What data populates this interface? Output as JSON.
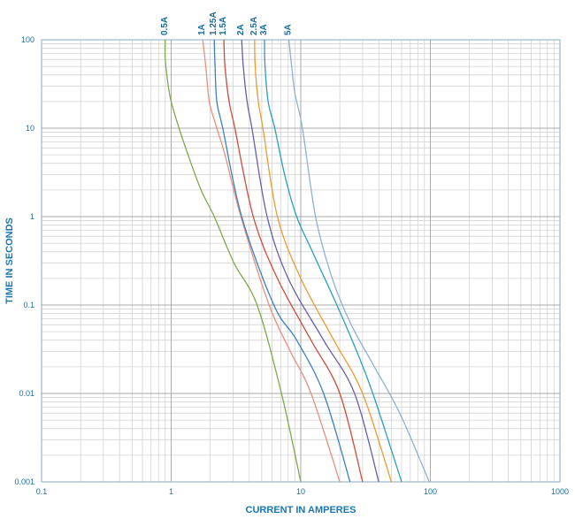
{
  "chart_data": {
    "type": "line",
    "xlabel": "CURRENT IN AMPERES",
    "ylabel": "TIME IN SECONDS",
    "xscale": "log",
    "yscale": "log",
    "xlim": [
      0.1,
      1000
    ],
    "ylim": [
      0.001,
      100
    ],
    "grid": true,
    "xticks": [
      {
        "value": 0.1,
        "label": "0.1"
      },
      {
        "value": 1,
        "label": "1"
      },
      {
        "value": 10,
        "label": "10"
      },
      {
        "value": 100,
        "label": "100"
      },
      {
        "value": 1000,
        "label": "1000"
      }
    ],
    "yticks": [
      {
        "value": 100,
        "label": "100"
      },
      {
        "value": 10,
        "label": "10"
      },
      {
        "value": 1,
        "label": "1"
      },
      {
        "value": 0.1,
        "label": "0.1"
      },
      {
        "value": 0.01,
        "label": "0.01"
      },
      {
        "value": 0.001,
        "label": "0.001"
      }
    ],
    "series": [
      {
        "name": "0.5A",
        "color": "#7fa84a",
        "x": [
          0.9,
          0.9,
          0.95,
          1.0,
          1.15,
          1.35,
          1.7,
          2.15,
          3.05,
          4.6,
          7.1,
          10.0
        ],
        "y": [
          100,
          60,
          30,
          20,
          10,
          5,
          2,
          1,
          0.3,
          0.1,
          0.01,
          0.001
        ]
      },
      {
        "name": "1A",
        "color": "#e8907a",
        "x": [
          1.75,
          1.85,
          1.97,
          2.25,
          2.6,
          3.45,
          5.7,
          8.3,
          12.0,
          20.0
        ],
        "y": [
          100,
          50,
          20,
          10,
          5,
          1,
          0.1,
          0.03,
          0.01,
          0.001
        ]
      },
      {
        "name": "1.25A",
        "color": "#3a7fc4",
        "x": [
          2.15,
          2.18,
          2.25,
          2.5,
          3.5,
          6.2,
          9.3,
          15.0,
          24.0
        ],
        "y": [
          100,
          50,
          20,
          10,
          1,
          0.1,
          0.04,
          0.01,
          0.001
        ]
      },
      {
        "name": "1.5A",
        "color": "#d04a3a",
        "x": [
          2.55,
          2.6,
          2.8,
          3.1,
          4.3,
          6.6,
          12.0,
          20.0,
          30.0
        ],
        "y": [
          100,
          50,
          20,
          10,
          1,
          0.2,
          0.04,
          0.01,
          0.001
        ]
      },
      {
        "name": "2A",
        "color": "#6a5ea8",
        "x": [
          3.5,
          3.6,
          3.85,
          4.2,
          5.5,
          8.0,
          15.0,
          26.0,
          40.0
        ],
        "y": [
          100,
          50,
          20,
          10,
          1,
          0.2,
          0.04,
          0.01,
          0.001
        ]
      },
      {
        "name": "2.5A",
        "color": "#ef9a2e",
        "x": [
          4.4,
          4.45,
          4.7,
          5.1,
          6.6,
          10.0,
          18.0,
          30.0,
          50.0
        ],
        "y": [
          100,
          50,
          20,
          10,
          1,
          0.2,
          0.04,
          0.01,
          0.001
        ]
      },
      {
        "name": "3A",
        "color": "#2aa0b8",
        "x": [
          5.25,
          5.3,
          5.6,
          6.3,
          7.5,
          9.3,
          12.3,
          19.0,
          27.0,
          36.0,
          60.0
        ],
        "y": [
          100,
          50,
          20,
          10,
          3,
          1,
          0.4,
          0.1,
          0.03,
          0.01,
          0.001
        ]
      },
      {
        "name": "5A",
        "color": "#8fb0d6",
        "x": [
          8.1,
          8.5,
          9.0,
          10.3,
          13.0,
          17.5,
          24.5,
          37.0,
          58.0,
          98.0
        ],
        "y": [
          100,
          50,
          25,
          10,
          1,
          0.2,
          0.06,
          0.02,
          0.006,
          0.001
        ]
      }
    ]
  }
}
